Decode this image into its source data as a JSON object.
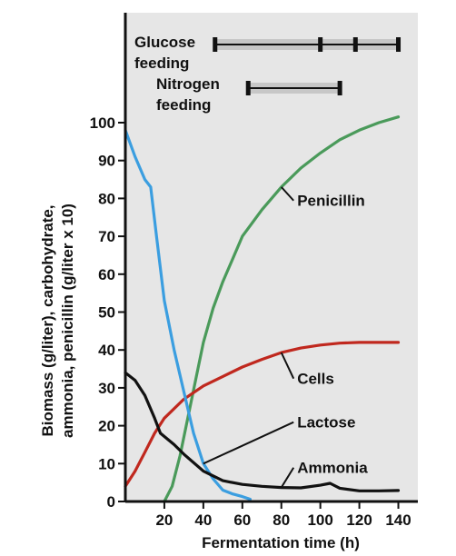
{
  "chart_data": {
    "type": "line",
    "xlabel": "Fermentation time (h)",
    "ylabel_lines": [
      "Biomass (g/liter), carbohydrate,",
      "ammonia, penicillin (g/liter x 10)"
    ],
    "xlim": [
      0,
      150
    ],
    "ylim": [
      0,
      100
    ],
    "x_ticks": [
      20,
      40,
      60,
      80,
      100,
      120,
      140
    ],
    "y_ticks": [
      0,
      10,
      20,
      30,
      40,
      50,
      60,
      70,
      80,
      90,
      100
    ],
    "grid": false,
    "series": [
      {
        "name": "Penicillin",
        "color": "#4a9a5a",
        "x": [
          20,
          24,
          28,
          32,
          36,
          40,
          45,
          50,
          55,
          60,
          70,
          80,
          90,
          100,
          110,
          120,
          130,
          140
        ],
        "y": [
          0,
          4,
          12,
          22,
          32,
          42,
          51,
          58,
          64,
          70,
          77,
          83,
          88,
          92,
          95.5,
          98,
          100,
          101.5
        ]
      },
      {
        "name": "Cells",
        "color": "#c0281e",
        "x": [
          0,
          5,
          10,
          15,
          20,
          30,
          40,
          50,
          60,
          70,
          80,
          90,
          100,
          110,
          120,
          130,
          140
        ],
        "y": [
          4,
          8,
          13,
          18,
          22,
          27,
          30.5,
          33,
          35.5,
          37.5,
          39.3,
          40.5,
          41.3,
          41.8,
          42,
          42,
          42
        ]
      },
      {
        "name": "Lactose",
        "color": "#3b9ee0",
        "x": [
          0,
          5,
          10,
          13,
          16,
          20,
          25,
          30,
          35,
          40,
          45,
          50,
          55,
          60,
          64
        ],
        "y": [
          98,
          91,
          85,
          83,
          70,
          53,
          40,
          29,
          18,
          10,
          6,
          3,
          2,
          1.3,
          0.6
        ]
      },
      {
        "name": "Ammonia",
        "color": "#111111",
        "x": [
          0,
          5,
          10,
          15,
          18,
          25,
          30,
          40,
          50,
          60,
          70,
          80,
          90,
          100,
          105,
          110,
          120,
          130,
          140
        ],
        "y": [
          34,
          32,
          28,
          22,
          18,
          15,
          12.5,
          8,
          5.5,
          4.5,
          4,
          3.7,
          3.6,
          4.3,
          4.8,
          3.5,
          2.8,
          2.8,
          2.9
        ]
      }
    ],
    "annotations": [
      {
        "text": "Penicillin",
        "series": "Penicillin",
        "at": 80,
        "label_at": [
          90,
          78
        ]
      },
      {
        "text": "Cells",
        "series": "Cells",
        "at": 80,
        "label_at": [
          90,
          31
        ]
      },
      {
        "text": "Lactose",
        "series": "Lactose",
        "at": 40,
        "label_at": [
          90,
          19.5
        ]
      },
      {
        "text": "Ammonia",
        "series": "Ammonia",
        "at": 80,
        "label_at": [
          90,
          7.5
        ]
      }
    ],
    "feeding_bars": [
      {
        "label_lines": [
          "Glucose",
          "feeding"
        ],
        "start": 46,
        "end": 140,
        "ticks": [
          46,
          100,
          118,
          140
        ]
      },
      {
        "label_lines": [
          "Nitrogen",
          "feeding"
        ],
        "start": 63,
        "end": 110,
        "ticks": [
          63,
          110
        ]
      }
    ]
  }
}
